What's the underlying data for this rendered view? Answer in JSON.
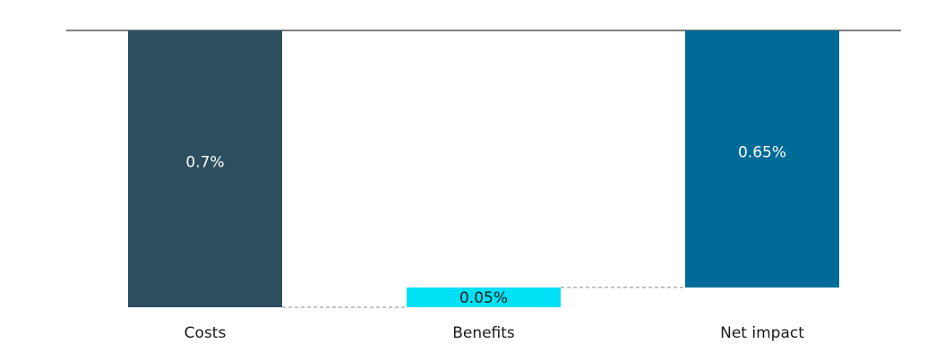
{
  "chart_data": {
    "type": "bar",
    "subtype": "waterfall",
    "title": "",
    "xlabel": "",
    "ylabel": "",
    "categories": [
      "Costs",
      "Benefits",
      "Net impact"
    ],
    "values": [
      0.7,
      -0.05,
      0.65
    ],
    "data_labels": [
      "0.7%",
      "0.05%",
      "0.65%"
    ],
    "ylim": [
      0,
      0.7
    ],
    "orientation": "bars hang downward from the top baseline",
    "grid": false,
    "legend": "none",
    "colors": {
      "costs": "#2d4e5f",
      "benefits": "#00e1f5",
      "net_impact": "#006b96",
      "baseline": "#333333",
      "connector": "#888888",
      "label_on_dark": "#ffffff",
      "label_on_light": "#1a1a1a"
    }
  }
}
